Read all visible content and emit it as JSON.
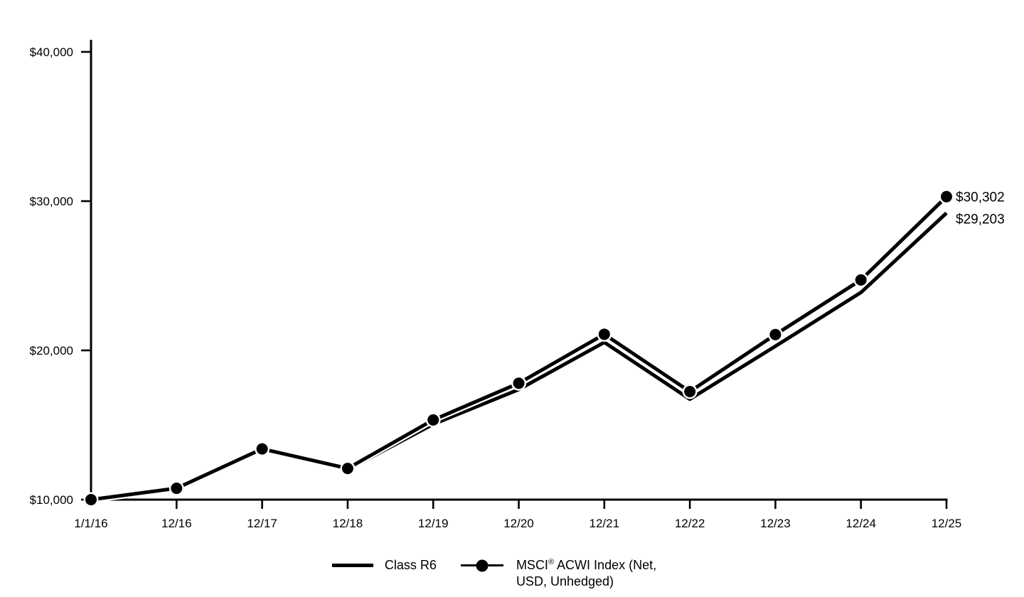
{
  "colors": {
    "foreground": "#000000",
    "background": "#ffffff"
  },
  "chart_data": {
    "type": "line",
    "title": "",
    "xlabel": "",
    "ylabel": "",
    "grid": false,
    "legend_position": "bottom",
    "x_labels": [
      "1/1/16",
      "12/16",
      "12/17",
      "12/18",
      "12/19",
      "12/20",
      "12/21",
      "12/22",
      "12/23",
      "12/24",
      "12/25"
    ],
    "y_axis": {
      "range": [
        10000,
        40000
      ],
      "ticks": [
        {
          "value": 10000,
          "label": "$10,000"
        },
        {
          "value": 20000,
          "label": "$20,000"
        },
        {
          "value": 30000,
          "label": "$30,000"
        },
        {
          "value": 40000,
          "label": "$40,000"
        }
      ]
    },
    "series": [
      {
        "name": "Class R6",
        "marker": false,
        "color": "#000000",
        "end_label": "$29,203",
        "values": [
          10000,
          10700,
          13330,
          12010,
          15050,
          17380,
          20540,
          16730,
          20280,
          23880,
          29203
        ]
      },
      {
        "name": "MSCI® ACWI Index (Net, USD, Unhedged)",
        "marker": true,
        "color": "#000000",
        "end_label": "$30,302",
        "values": [
          10000,
          10760,
          13400,
          12090,
          15340,
          17800,
          21080,
          17240,
          21060,
          24720,
          30302
        ]
      }
    ]
  },
  "legend": {
    "items": [
      {
        "id": "class-r6",
        "swatch": "line",
        "text": "Class R6"
      },
      {
        "id": "msci-acwi",
        "swatch": "line-marker",
        "text_prefix": "MSCI",
        "text_sup": "®",
        "text_line1_rest": " ACWI Index (Net,",
        "text_line2": "USD, Unhedged)"
      }
    ]
  }
}
